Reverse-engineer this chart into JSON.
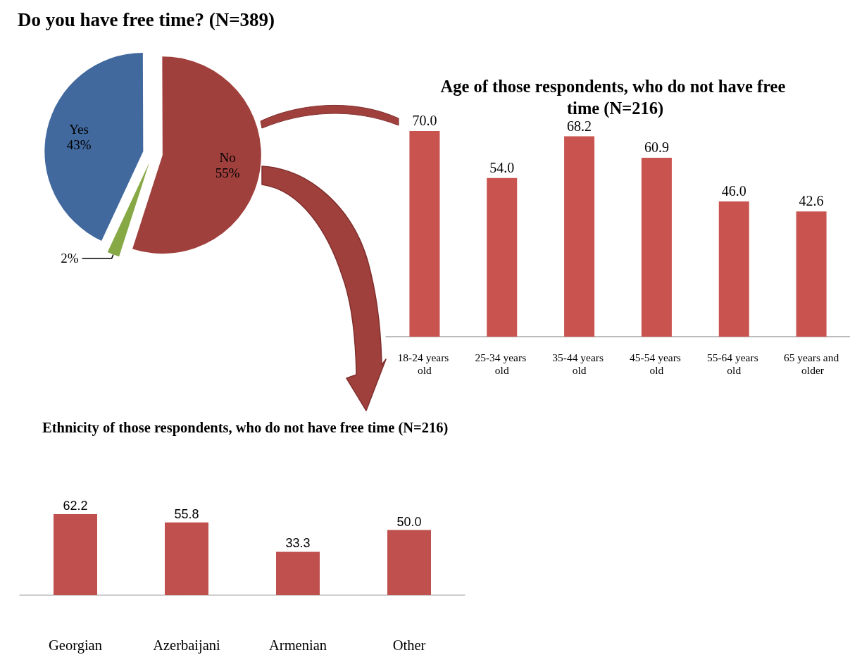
{
  "chart_data": [
    {
      "type": "pie",
      "title": "Do you have free time? (N=389)",
      "categories": [
        "Yes",
        "No",
        null
      ],
      "values": [
        43,
        55,
        2
      ],
      "colors": [
        "#41699e",
        "#a0403d",
        "#86a845"
      ],
      "value_labels": [
        "43%",
        "55%",
        "2%"
      ]
    },
    {
      "type": "bar",
      "title": "Age of those respondents, who do not have free time (N=216)",
      "categories": [
        "18-24 years old",
        "25-34 years old",
        "35-44 years old",
        "45-54 years old",
        "55-64 years old",
        "65 years and older"
      ],
      "values": [
        70,
        54,
        68.2,
        60.9,
        46,
        42.6
      ],
      "color": "#c9534f",
      "value_labels": [
        "70.0",
        "54.0",
        "68.2",
        "60.9",
        "46.0",
        "42.6"
      ],
      "tick_labels": "x"
    },
    {
      "type": "bar",
      "title": "Ethnicity of those respondents, who do not have free time (N=216)",
      "categories": [
        "Georgian",
        "Azerbaijani",
        "Armenian",
        "Other"
      ],
      "values": [
        62.2,
        55.8,
        33.3,
        50
      ],
      "color": "#c0504d",
      "value_labels": [
        "62.2",
        "55.8",
        "33.3",
        "50.0"
      ],
      "tick_labels": "x"
    }
  ]
}
